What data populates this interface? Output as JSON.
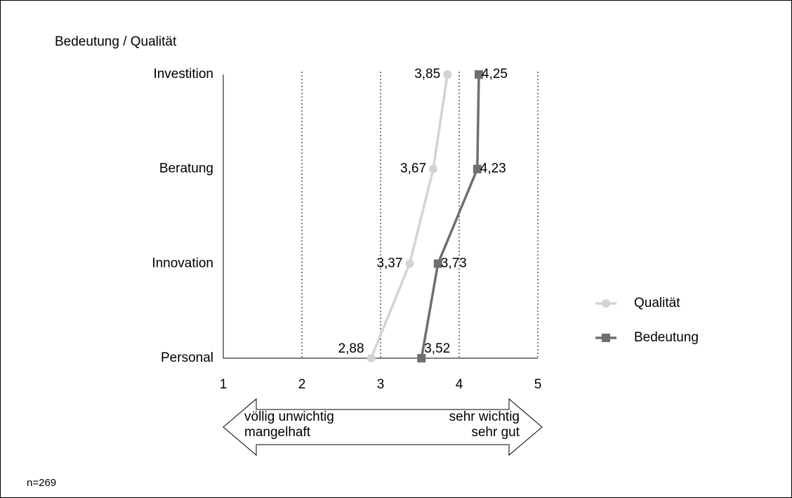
{
  "chart_data": {
    "type": "line",
    "orientation": "horizontal",
    "y_axis_title": "Bedeutung / Qualität",
    "categories": [
      "Investition",
      "Beratung",
      "Innovation",
      "Personal"
    ],
    "series": [
      {
        "name": "Qualität",
        "color": "#d3d3d3",
        "marker": "circle",
        "values": [
          3.85,
          3.67,
          3.37,
          2.88
        ],
        "value_labels": [
          "3,85",
          "3,67",
          "3,37",
          "2,88"
        ]
      },
      {
        "name": "Bedeutung",
        "color": "#6f6f6f",
        "marker": "square",
        "values": [
          4.25,
          4.23,
          3.73,
          3.52
        ],
        "value_labels": [
          "4,25",
          "4,23",
          "3,73",
          "3,52"
        ]
      }
    ],
    "xlim": [
      1,
      5
    ],
    "xticks": [
      1,
      2,
      3,
      4,
      5
    ],
    "grid": true,
    "legend": "right",
    "annotations": [
      "völlig unwichtig",
      "mangelhaft",
      "sehr wichtig",
      "sehr gut"
    ],
    "note": "n=269"
  }
}
